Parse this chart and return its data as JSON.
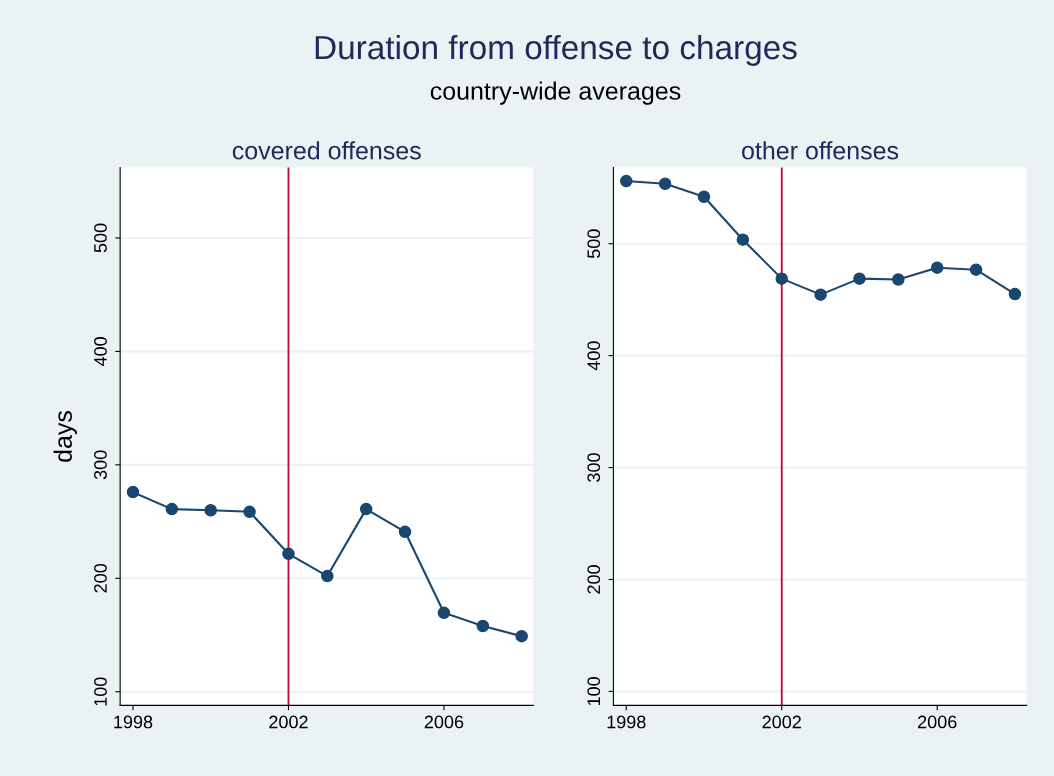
{
  "chart_data": [
    {
      "type": "line",
      "title": "covered offenses",
      "ylabel": "days",
      "annotations": [
        "Duration from offense to charges",
        "country-wide averages"
      ],
      "x": [
        1998,
        1999,
        2000,
        2001,
        2002,
        2003,
        2004,
        2005,
        2006,
        2007,
        2008
      ],
      "series": [
        {
          "color": "#1a476f",
          "values": [
            276,
            261,
            260,
            258.6,
            221.6,
            202,
            261,
            241,
            169.6,
            158,
            149
          ]
        }
      ],
      "xlim": [
        1997.67,
        2008.3
      ],
      "ylim": [
        88,
        562
      ],
      "xticks": [
        1998,
        2002,
        2006
      ],
      "yticks": [
        100,
        200,
        300,
        400,
        500
      ],
      "ref_lines": [
        {
          "axis": "x",
          "value": 2002,
          "color": "#c10534"
        }
      ],
      "grid": "y",
      "marker": "circle",
      "line_style": "solid"
    },
    {
      "type": "line",
      "title": "other offenses",
      "x": [
        1998,
        1999,
        2000,
        2001,
        2002,
        2003,
        2004,
        2005,
        2006,
        2007,
        2008
      ],
      "series": [
        {
          "color": "#1a476f",
          "values": [
            556,
            553.6,
            542,
            503.6,
            468.8,
            454.5,
            468.8,
            468,
            478.6,
            476.8,
            455
          ]
        }
      ],
      "xlim": [
        1997.67,
        2008.3
      ],
      "ylim": [
        87.5,
        568
      ],
      "xticks": [
        1998,
        2002,
        2006
      ],
      "yticks": [
        100,
        200,
        300,
        400,
        500
      ],
      "ref_lines": [
        {
          "axis": "x",
          "value": 2002,
          "color": "#c10534"
        }
      ],
      "grid": "y",
      "marker": "circle",
      "line_style": "solid"
    }
  ]
}
